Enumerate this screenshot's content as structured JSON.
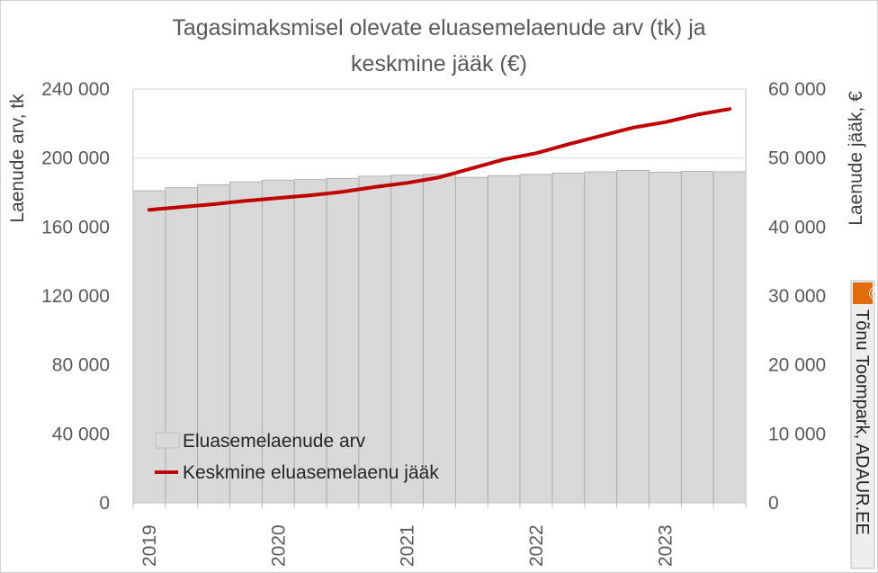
{
  "chart_data": {
    "type": "bar+line",
    "title_line1": "Tagasimaksmisel olevate eluasemelaenude arv (tk) ja",
    "title_line2": "keskmine jääk (€)",
    "y_left_label": "Laenude arv, tk",
    "y_right_label": "Laenude jääk, €",
    "y_left_lim": [
      0,
      240000
    ],
    "y_right_lim": [
      0,
      60000
    ],
    "y_left_ticks": [
      "0",
      "40 000",
      "80 000",
      "120 000",
      "160 000",
      "200 000",
      "240 000"
    ],
    "y_right_ticks": [
      "0",
      "10 000",
      "20 000",
      "30 000",
      "40 000",
      "50 000",
      "60 000"
    ],
    "x_ticks": [
      "2019",
      "2020",
      "2021",
      "2022",
      "2023"
    ],
    "grid": true,
    "legend_position": "bottom-left",
    "bar_series": {
      "name": "Eluasemelaenude arv",
      "color": "#d9d9d9",
      "periods": [
        "2019 Q1",
        "2019 Q2",
        "2019 Q3",
        "2019 Q4",
        "2020 Q1",
        "2020 Q2",
        "2020 Q3",
        "2020 Q4",
        "2021 Q1",
        "2021 Q2",
        "2021 Q3",
        "2021 Q4",
        "2022 Q1",
        "2022 Q2",
        "2022 Q3",
        "2022 Q4",
        "2023 Q1",
        "2023 Q2",
        "2023 Q3"
      ],
      "values": [
        181000,
        182800,
        184500,
        186200,
        187200,
        187500,
        188200,
        189500,
        190000,
        190500,
        188800,
        189800,
        190500,
        191200,
        192000,
        192800,
        191800,
        192300,
        192000
      ]
    },
    "line_series": {
      "name": "Keskmine eluasemelaenu jääk",
      "color": "#c00000",
      "values": [
        42500,
        42900,
        43300,
        43800,
        44200,
        44600,
        45100,
        45800,
        46400,
        47200,
        48500,
        49800,
        50700,
        52000,
        53200,
        54400,
        55200,
        56300,
        57100
      ]
    }
  },
  "watermark": {
    "copyright_symbol": "©",
    "text": "Tõnu Toompark, ADAUR.EE",
    "badge_color": "#e36c0a"
  }
}
